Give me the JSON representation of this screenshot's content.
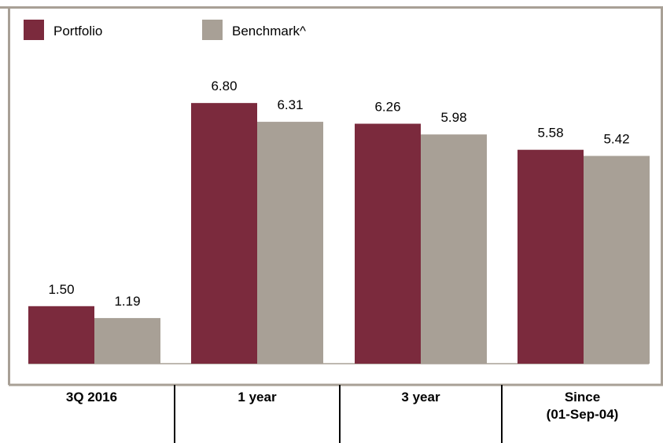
{
  "chart_data": {
    "type": "bar",
    "categories": [
      "3Q 2016",
      "1 year",
      "3 year",
      "Since (01-Sep-04)"
    ],
    "category_lines": [
      [
        "3Q 2016"
      ],
      [
        "1 year"
      ],
      [
        "3 year"
      ],
      [
        "Since",
        "(01-Sep-04)"
      ]
    ],
    "series": [
      {
        "name": "Portfolio",
        "values": [
          1.5,
          6.8,
          6.26,
          5.58
        ],
        "value_labels": [
          "1.50",
          "6.80",
          "6.26",
          "5.58"
        ],
        "color": "#7b2a3d"
      },
      {
        "name": "Benchmark^",
        "values": [
          1.19,
          6.31,
          5.98,
          5.42
        ],
        "value_labels": [
          "1.19",
          "6.31",
          "5.98",
          "5.42"
        ],
        "color": "#a8a096"
      }
    ],
    "ylim": [
      0,
      7
    ],
    "grid": false,
    "legend_position": "top-left"
  }
}
